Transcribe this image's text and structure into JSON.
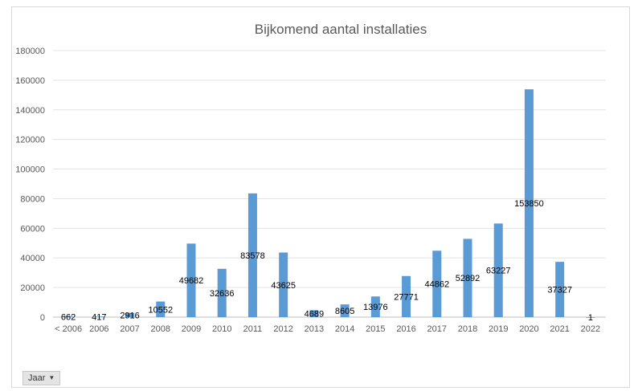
{
  "chart_data": {
    "type": "bar",
    "title": "Bijkomend aantal installaties",
    "xlabel": "",
    "ylabel": "",
    "categories": [
      "< 2006",
      "2006",
      "2007",
      "2008",
      "2009",
      "2010",
      "2011",
      "2012",
      "2013",
      "2014",
      "2015",
      "2016",
      "2017",
      "2018",
      "2019",
      "2020",
      "2021",
      "2022"
    ],
    "values": [
      662,
      417,
      2916,
      10552,
      49682,
      32636,
      83578,
      43625,
      4689,
      8605,
      13976,
      27771,
      44862,
      52892,
      63227,
      153850,
      37327,
      1
    ],
    "ylim": [
      0,
      180000
    ],
    "yticks": [
      0,
      20000,
      40000,
      60000,
      80000,
      100000,
      120000,
      140000,
      160000,
      180000
    ],
    "grid": true,
    "legend": "none",
    "bar_color": "#5b9bd5"
  },
  "filter": {
    "label": "Jaar",
    "icon": "dropdown-arrow-icon"
  }
}
